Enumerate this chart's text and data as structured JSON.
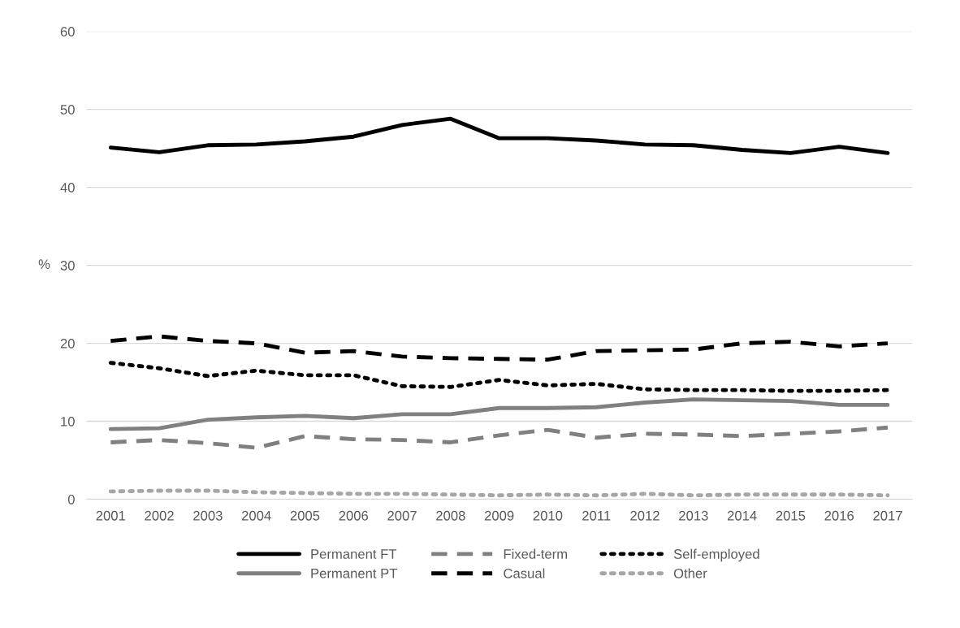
{
  "chart_data": {
    "type": "line",
    "ylabel": "%",
    "categories": [
      "2001",
      "2002",
      "2003",
      "2004",
      "2005",
      "2006",
      "2007",
      "2008",
      "2009",
      "2010",
      "2011",
      "2012",
      "2013",
      "2014",
      "2015",
      "2016",
      "2017"
    ],
    "ylim": [
      0,
      60
    ],
    "yticks": [
      0,
      10,
      20,
      30,
      40,
      50,
      60
    ],
    "grid": "y",
    "legend": "bottom",
    "marker": "none",
    "series": [
      {
        "name": "Permanent FT",
        "color": "#000000",
        "line_style": "solid",
        "values": [
          45.1,
          44.5,
          45.4,
          45.5,
          45.9,
          46.5,
          48.0,
          48.8,
          46.3,
          46.3,
          46.0,
          45.5,
          45.4,
          44.8,
          44.4,
          45.2,
          44.4
        ]
      },
      {
        "name": "Permanent PT",
        "color": "#808080",
        "line_style": "solid",
        "values": [
          9.0,
          9.1,
          10.2,
          10.5,
          10.7,
          10.4,
          10.9,
          10.9,
          11.7,
          11.7,
          11.8,
          12.4,
          12.8,
          12.7,
          12.6,
          12.1,
          12.1
        ]
      },
      {
        "name": "Fixed-term",
        "color": "#808080",
        "line_style": "dashed",
        "values": [
          7.3,
          7.6,
          7.2,
          6.6,
          8.1,
          7.7,
          7.6,
          7.3,
          8.2,
          8.9,
          7.9,
          8.4,
          8.3,
          8.1,
          8.4,
          8.7,
          9.2
        ]
      },
      {
        "name": "Casual",
        "color": "#000000",
        "line_style": "dashed",
        "values": [
          20.3,
          20.9,
          20.3,
          20.0,
          18.8,
          19.0,
          18.3,
          18.1,
          18.0,
          17.9,
          19.0,
          19.1,
          19.2,
          20.0,
          20.2,
          19.6,
          20.0
        ]
      },
      {
        "name": "Self-employed",
        "color": "#000000",
        "line_style": "dotted",
        "values": [
          17.5,
          16.8,
          15.8,
          16.5,
          15.9,
          15.9,
          14.5,
          14.4,
          15.3,
          14.6,
          14.8,
          14.1,
          14.0,
          14.0,
          13.9,
          13.9,
          14.0
        ]
      },
      {
        "name": "Other",
        "color": "#a6a6a6",
        "line_style": "dotted",
        "values": [
          1.0,
          1.1,
          1.1,
          0.9,
          0.8,
          0.7,
          0.7,
          0.6,
          0.5,
          0.6,
          0.5,
          0.7,
          0.5,
          0.6,
          0.6,
          0.6,
          0.5
        ]
      }
    ]
  }
}
